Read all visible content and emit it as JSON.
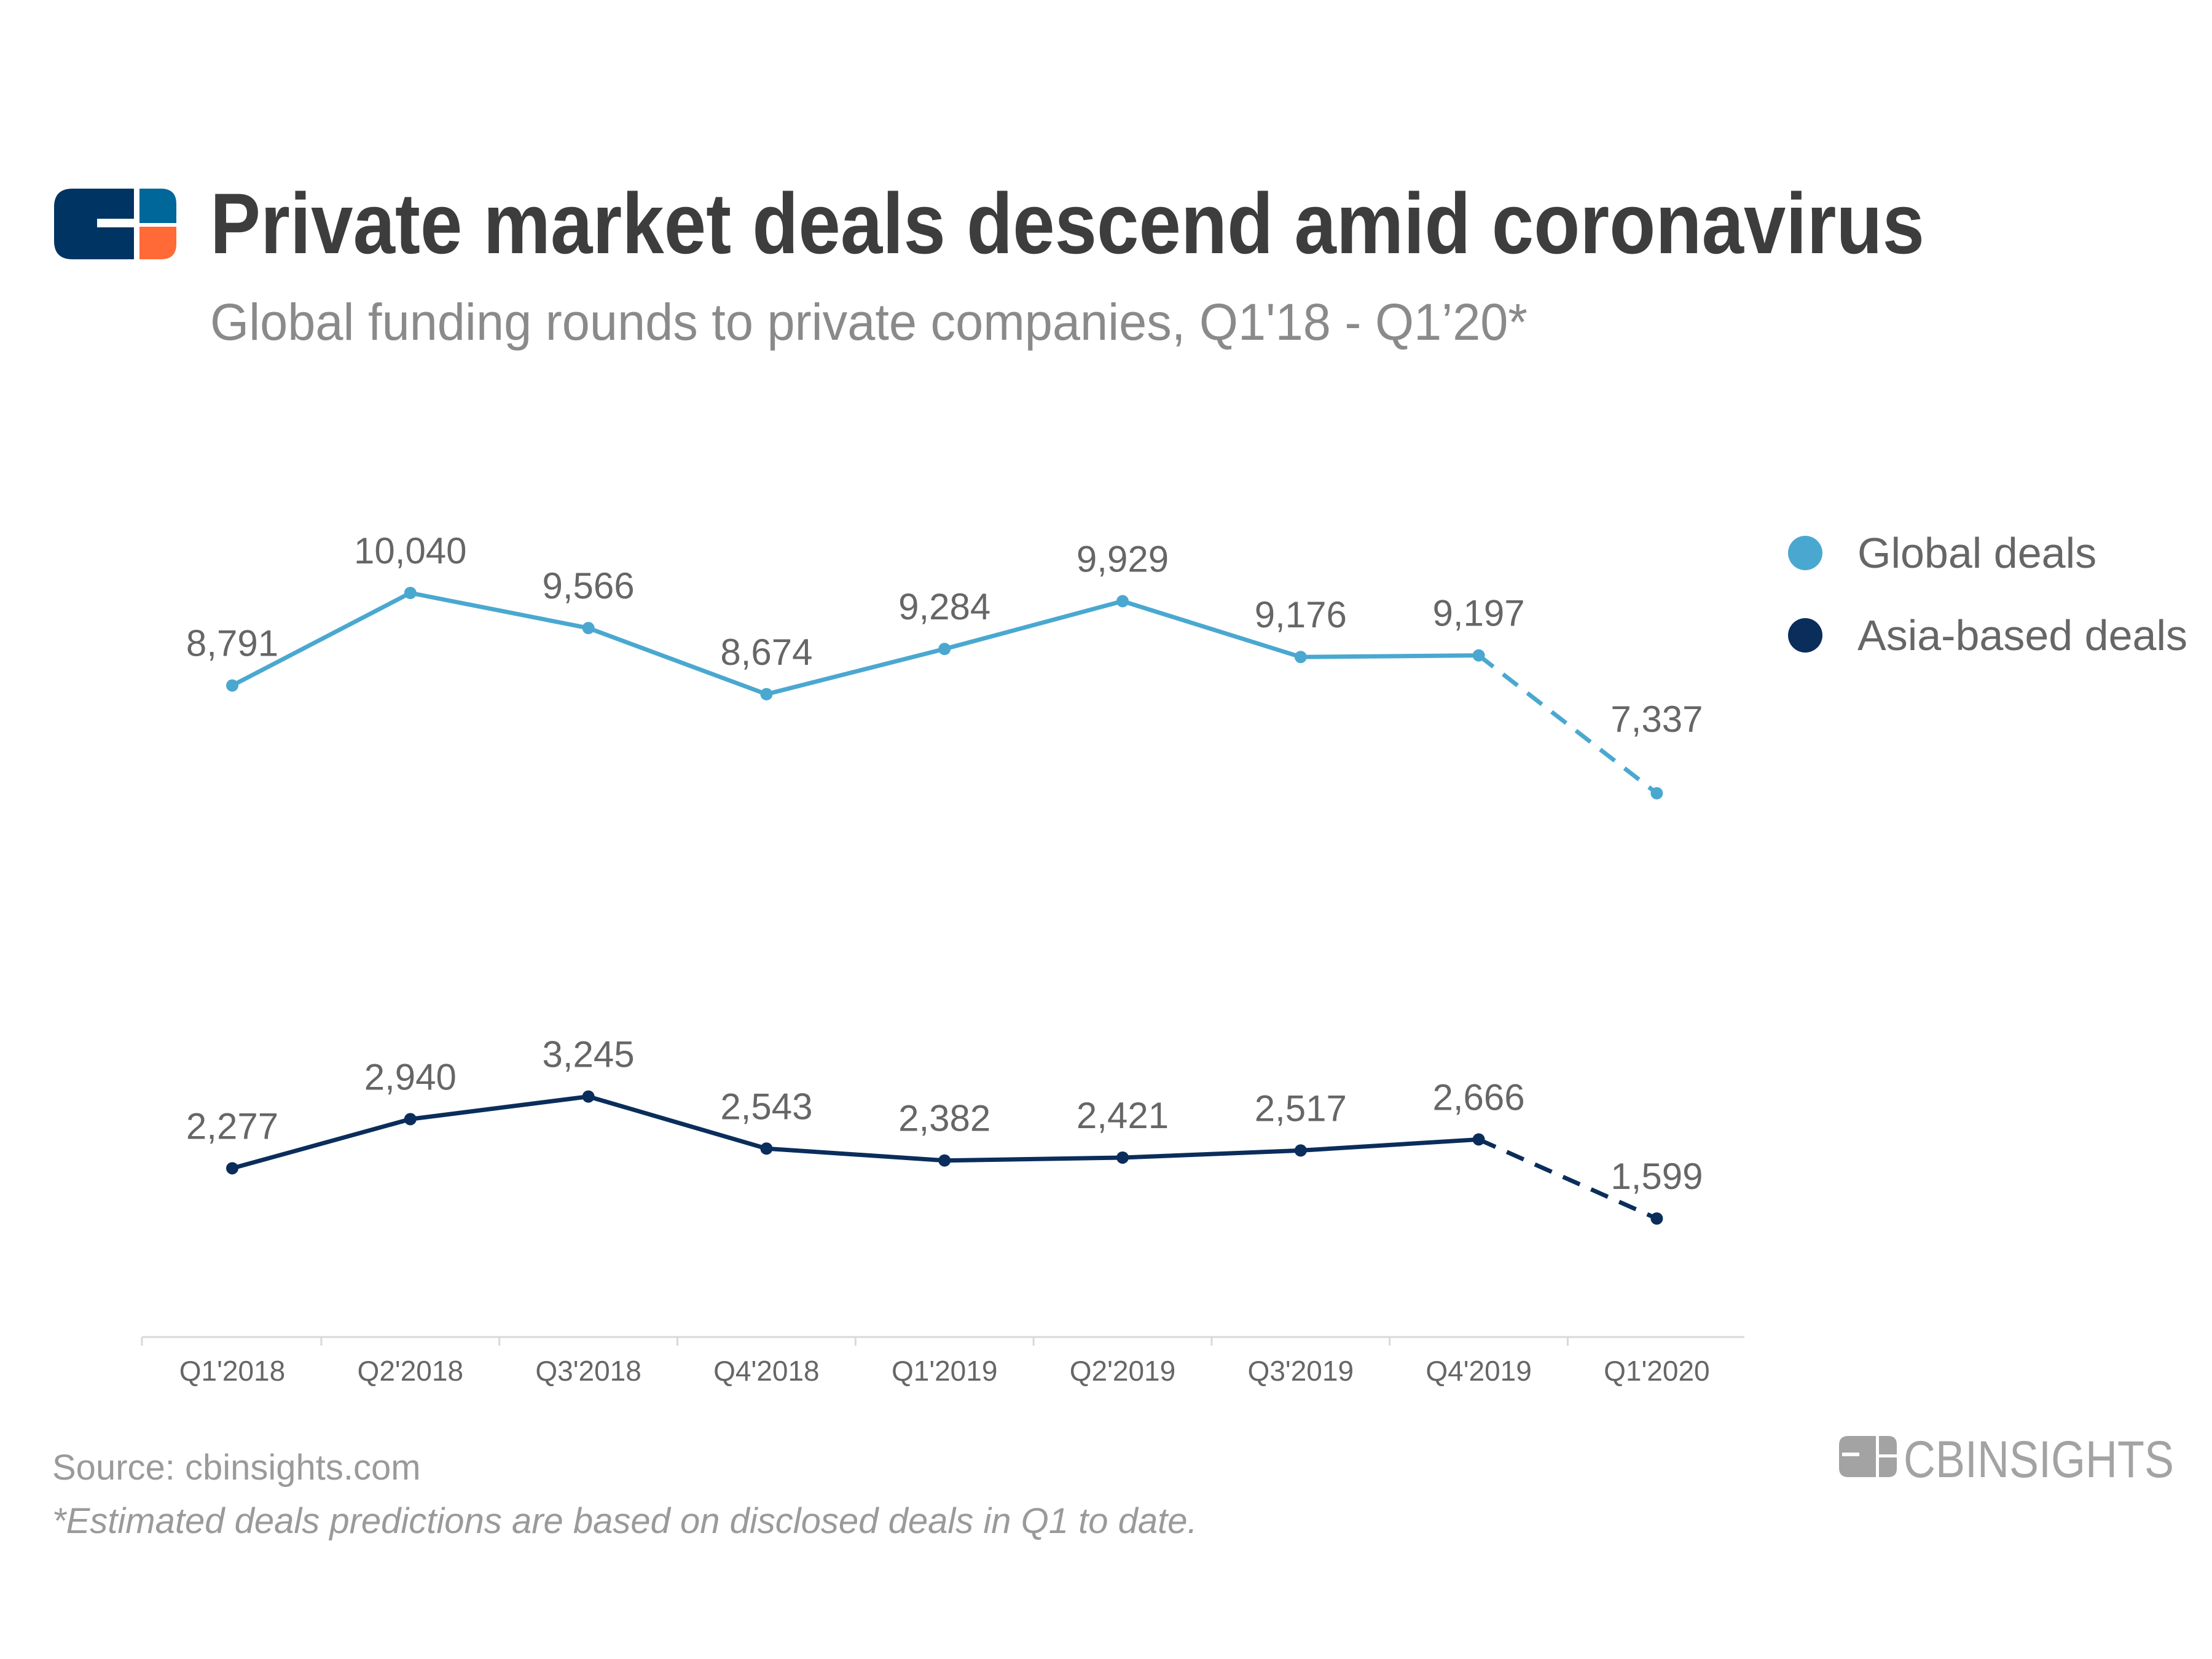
{
  "header": {
    "title": "Private market deals descend amid coronavirus",
    "subtitle": "Global funding rounds to private companies, Q1'18 - Q1’20*"
  },
  "footer": {
    "source": "Source: cbinsights.com",
    "note": "*Estimated deals predictions are based on disclosed deals in Q1 to date.",
    "brand_logo_text": "CBINSIGHTS"
  },
  "colors": {
    "global": "#4aa8d0",
    "asia": "#0b2d5b",
    "logo_navy": "#003462",
    "logo_blue": "#00679a",
    "logo_orange": "#ff6a36"
  },
  "chart_data": {
    "type": "line",
    "title": "Private market deals descend amid coronavirus",
    "subtitle": "Global funding rounds to private companies, Q1'18 - Q1’20*",
    "categories": [
      "Q1'2018",
      "Q2'2018",
      "Q3'2018",
      "Q4'2018",
      "Q1'2019",
      "Q2'2019",
      "Q3'2019",
      "Q4'2019",
      "Q1'2020"
    ],
    "series": [
      {
        "name": "Global deals",
        "color": "#4aa8d0",
        "values": [
          8791,
          10040,
          9566,
          8674,
          9284,
          9929,
          9176,
          9197,
          7337
        ],
        "labels": [
          "8,791",
          "10,040",
          "9,566",
          "8,674",
          "9,284",
          "9,929",
          "9,176",
          "9,197",
          "7,337"
        ]
      },
      {
        "name": "Asia-based deals",
        "color": "#0b2d5b",
        "values": [
          2277,
          2940,
          3245,
          2543,
          2382,
          2421,
          2517,
          2666,
          1599
        ],
        "labels": [
          "2,277",
          "2,940",
          "3,245",
          "2,543",
          "2,382",
          "2,421",
          "2,517",
          "2,666",
          "1,599"
        ]
      }
    ],
    "estimated_last_point": true,
    "ylim": [
      0,
      10040
    ],
    "y_axis_visible": false,
    "grid": false,
    "legend": "right"
  }
}
